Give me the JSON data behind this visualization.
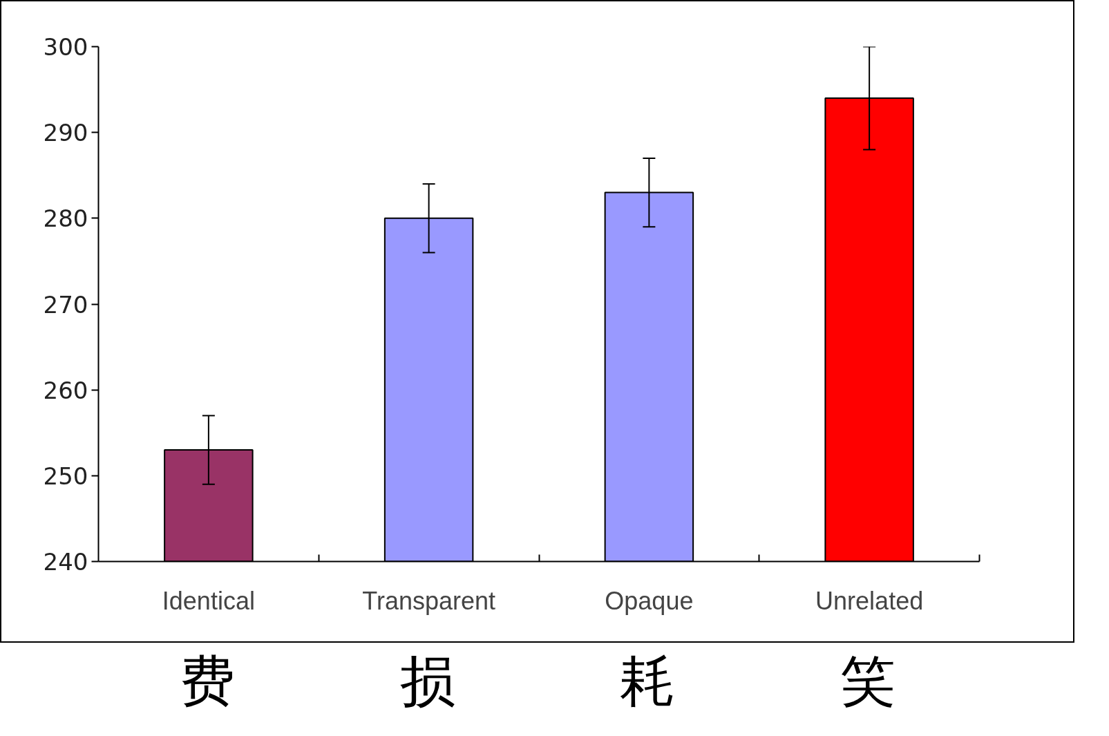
{
  "chart_data": {
    "type": "bar",
    "categories": [
      "Identical",
      "Transparent",
      "Opaque",
      "Unrelated"
    ],
    "values": [
      253,
      280,
      283,
      294
    ],
    "colors": [
      "#993366",
      "#9999ff",
      "#9999ff",
      "#ff0000"
    ],
    "errors": [
      4,
      4,
      4,
      6
    ],
    "ylim": [
      240,
      300
    ],
    "yticks": [
      240,
      250,
      260,
      270,
      280,
      290,
      300
    ],
    "grid": false,
    "annotations": [
      "费",
      "损",
      "耗",
      "笑"
    ]
  }
}
